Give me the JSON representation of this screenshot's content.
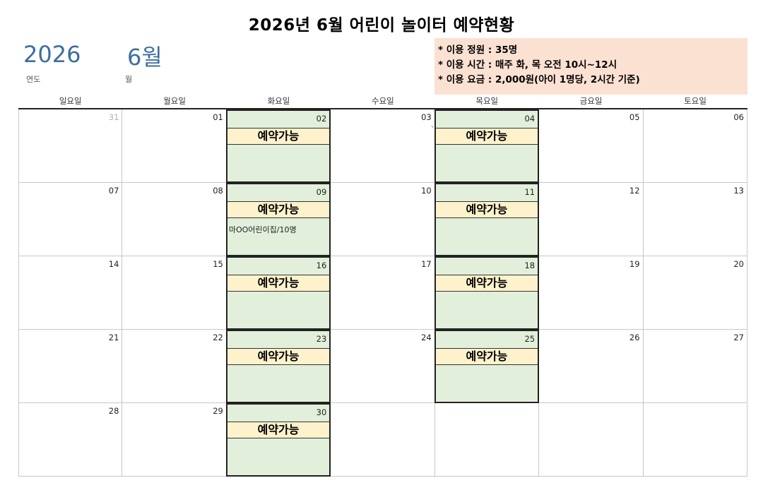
{
  "title": "2026년 6월 어린이 놀이터 예약현황",
  "year": "2026",
  "year_label": "연도",
  "month": "6월",
  "month_label": "월",
  "info": {
    "line1": "* 이용 정원 : 35명",
    "line2": "* 이용 시간 : 매주 화, 목 오전 10시~12시",
    "line3": "* 이용 요금 : 2,000원(아이 1명당, 2시간 기준)"
  },
  "colors": {
    "available_cell_bg": "#e2efdb",
    "status_bg": "#fef2cc",
    "info_bg": "#fbe1d2",
    "header_accent": "#3d6f9e"
  },
  "weekdays": [
    "일요일",
    "월요일",
    "화요일",
    "수요일",
    "목요일",
    "금요일",
    "토요일"
  ],
  "weeks": [
    [
      {
        "day": "31",
        "other_month": true
      },
      {
        "day": "01"
      },
      {
        "day": "02",
        "available": true,
        "status": "예약가능"
      },
      {
        "day": "03",
        "mark": "`"
      },
      {
        "day": "04",
        "available": true,
        "status": "예약가능"
      },
      {
        "day": "05"
      },
      {
        "day": "06"
      }
    ],
    [
      {
        "day": "07"
      },
      {
        "day": "08"
      },
      {
        "day": "09",
        "available": true,
        "status": "예약가능",
        "note": "마OO어린이집/10명"
      },
      {
        "day": "10"
      },
      {
        "day": "11",
        "available": true,
        "status": "예약가능"
      },
      {
        "day": "12"
      },
      {
        "day": "13"
      }
    ],
    [
      {
        "day": "14"
      },
      {
        "day": "15"
      },
      {
        "day": "16",
        "available": true,
        "status": "예약가능"
      },
      {
        "day": "17"
      },
      {
        "day": "18",
        "available": true,
        "status": "예약가능"
      },
      {
        "day": "19"
      },
      {
        "day": "20"
      }
    ],
    [
      {
        "day": "21"
      },
      {
        "day": "22"
      },
      {
        "day": "23",
        "available": true,
        "status": "예약가능"
      },
      {
        "day": "24"
      },
      {
        "day": "25",
        "available": true,
        "status": "예약가능"
      },
      {
        "day": "26"
      },
      {
        "day": "27"
      }
    ],
    [
      {
        "day": "28"
      },
      {
        "day": "29"
      },
      {
        "day": "30",
        "available": true,
        "status": "예약가능"
      },
      {
        "day": ""
      },
      {
        "day": ""
      },
      {
        "day": ""
      },
      {
        "day": ""
      }
    ]
  ]
}
